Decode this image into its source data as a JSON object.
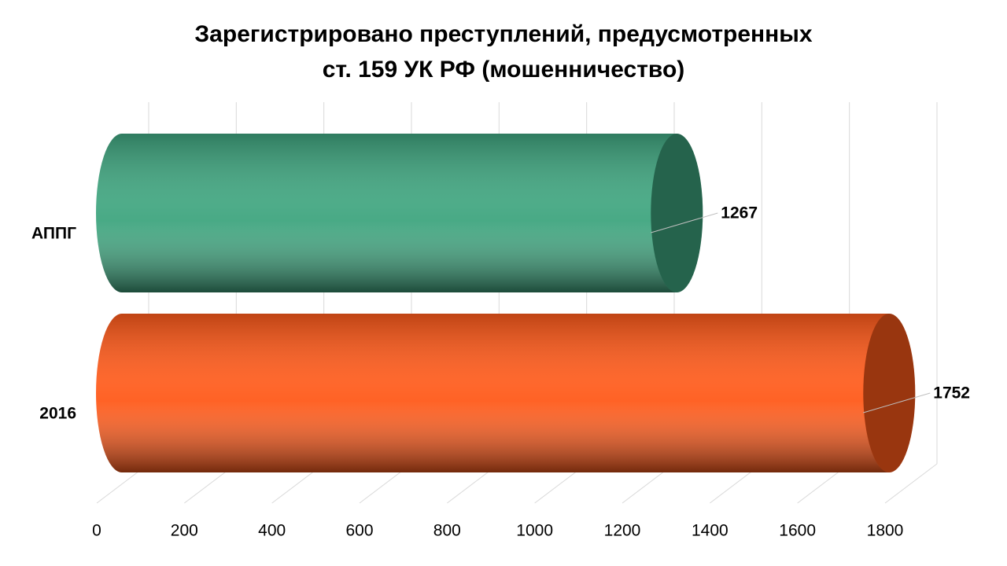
{
  "chart_data": {
    "type": "bar",
    "orientation": "horizontal",
    "title": [
      "Зарегистрировано преступлений, предусмотренных",
      "ст. 159 УК РФ (мошенничество)"
    ],
    "categories": [
      "АППГ",
      "2016"
    ],
    "series": [
      {
        "values": [
          1267,
          1752
        ],
        "colors": [
          "#3fa57f",
          "#ff5a1a"
        ]
      }
    ],
    "xlim": [
      0,
      1800
    ],
    "xticks": [
      0,
      200,
      400,
      600,
      800,
      1000,
      1200,
      1400,
      1600,
      1800
    ],
    "grid": true
  }
}
